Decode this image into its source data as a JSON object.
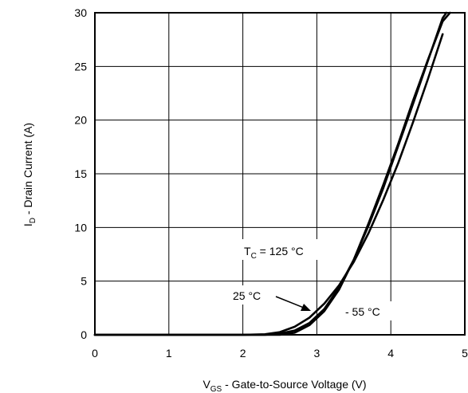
{
  "chart_data": {
    "type": "line",
    "title": "",
    "xlabel": {
      "main": "V",
      "sub": "GS",
      "rest": " - Gate-to-Source Voltage (V)"
    },
    "ylabel": {
      "main": "I",
      "sub": "D",
      "rest": " - Drain Current (A)"
    },
    "xlim": [
      0,
      5
    ],
    "ylim": [
      0,
      30
    ],
    "xticks": [
      0,
      1,
      2,
      3,
      4,
      5
    ],
    "yticks": [
      0,
      5,
      10,
      15,
      20,
      25,
      30
    ],
    "grid": true,
    "series": [
      {
        "x": [
          0,
          2.0,
          2.3,
          2.5,
          2.7,
          2.9,
          3.1,
          3.3,
          3.5,
          3.7,
          3.9,
          4.1,
          4.3,
          4.5,
          4.7
        ],
        "values": [
          0,
          0,
          0.05,
          0.25,
          0.75,
          1.6,
          2.9,
          4.6,
          6.8,
          9.5,
          12.6,
          16.0,
          19.8,
          23.8,
          28.0
        ]
      },
      {
        "x": [
          0,
          2.3,
          2.5,
          2.7,
          2.9,
          3.1,
          3.3,
          3.5,
          3.7,
          3.9,
          4.1,
          4.3,
          4.5,
          4.7,
          4.75
        ],
        "values": [
          0,
          0,
          0.12,
          0.4,
          1.1,
          2.4,
          4.4,
          7.0,
          10.2,
          13.7,
          17.6,
          21.5,
          25.5,
          29.5,
          30.0
        ]
      },
      {
        "x": [
          0,
          2.5,
          2.7,
          2.9,
          3.1,
          3.3,
          3.5,
          3.7,
          3.9,
          4.1,
          4.3,
          4.5,
          4.7,
          4.8
        ],
        "values": [
          0,
          0,
          0.2,
          0.9,
          2.2,
          4.2,
          7.0,
          10.4,
          14.0,
          17.8,
          21.8,
          25.6,
          29.2,
          30.0
        ]
      }
    ],
    "annotations": [
      {
        "main": "T",
        "sub": "C",
        "rest": " = 125 °C"
      },
      {
        "text": "25 °C"
      },
      {
        "text": "- 55 °C"
      }
    ]
  }
}
